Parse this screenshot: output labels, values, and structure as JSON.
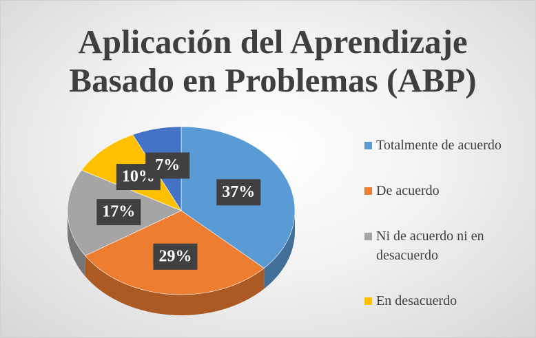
{
  "chart_data": {
    "type": "pie",
    "three_d": true,
    "title": "Aplicación del Aprendizaje Basado en Problemas (ABP)",
    "categories": [
      "Totalmente de acuerdo",
      "De acuerdo",
      "Ni de acuerdo ni en desacuerdo",
      "En desacuerdo",
      null
    ],
    "values": [
      37,
      29,
      17,
      10,
      7
    ],
    "value_labels": [
      "37%",
      "29%",
      "17%",
      "10%",
      "7%"
    ],
    "colors": [
      "#5b9bd5",
      "#ed7d31",
      "#a5a5a5",
      "#ffc000",
      "#4472c4"
    ],
    "legend": "right"
  }
}
